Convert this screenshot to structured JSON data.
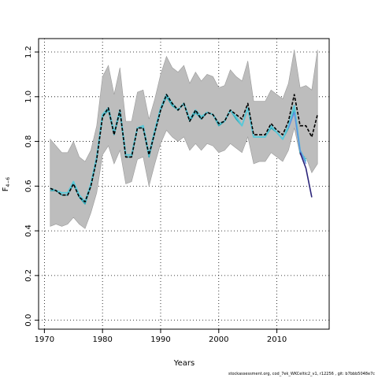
{
  "chart_data": {
    "type": "line",
    "xlabel": "Years",
    "ylabel": "F",
    "ylabel_sub": "4−6",
    "xlim": [
      1969,
      2019
    ],
    "ylim": [
      -0.04,
      1.26
    ],
    "x_ticks": [
      1970,
      1980,
      1990,
      2000,
      2010
    ],
    "y_ticks": [
      0.0,
      0.2,
      0.4,
      0.6,
      0.8,
      1.0,
      1.2
    ],
    "x_tick_labels": [
      "1970",
      "1980",
      "1990",
      "2000",
      "2010"
    ],
    "y_tick_labels": [
      "0.0",
      "0.2",
      "0.4",
      "0.6",
      "0.8",
      "1.0",
      "1.2"
    ],
    "grid": "dotted",
    "band": {
      "x": [
        1971,
        1972,
        1973,
        1974,
        1975,
        1976,
        1977,
        1978,
        1979,
        1980,
        1981,
        1982,
        1983,
        1984,
        1985,
        1986,
        1987,
        1988,
        1989,
        1990,
        1991,
        1992,
        1993,
        1994,
        1995,
        1996,
        1997,
        1998,
        1999,
        2000,
        2001,
        2002,
        2003,
        2004,
        2005,
        2006,
        2007,
        2008,
        2009,
        2010,
        2011,
        2012,
        2013,
        2014,
        2015,
        2016,
        2017
      ],
      "upper": [
        0.81,
        0.78,
        0.75,
        0.75,
        0.8,
        0.73,
        0.71,
        0.76,
        0.87,
        1.09,
        1.14,
        1.01,
        1.13,
        0.89,
        0.89,
        1.02,
        1.03,
        0.9,
        0.99,
        1.1,
        1.18,
        1.13,
        1.11,
        1.14,
        1.06,
        1.11,
        1.07,
        1.1,
        1.09,
        1.04,
        1.05,
        1.12,
        1.09,
        1.07,
        1.16,
        0.98,
        0.98,
        0.98,
        1.03,
        1.01,
        0.99,
        1.06,
        1.21,
        1.04,
        1.05,
        1.03,
        1.21
      ],
      "lower": [
        0.42,
        0.43,
        0.42,
        0.43,
        0.46,
        0.43,
        0.41,
        0.48,
        0.57,
        0.74,
        0.78,
        0.7,
        0.76,
        0.61,
        0.62,
        0.72,
        0.73,
        0.6,
        0.7,
        0.79,
        0.85,
        0.82,
        0.8,
        0.82,
        0.76,
        0.79,
        0.76,
        0.79,
        0.78,
        0.75,
        0.76,
        0.79,
        0.77,
        0.75,
        0.82,
        0.7,
        0.71,
        0.71,
        0.75,
        0.73,
        0.71,
        0.76,
        0.86,
        0.74,
        0.73,
        0.66,
        0.7
      ]
    },
    "series": [
      {
        "color": "#000000",
        "dashed": true,
        "width": 1.6,
        "x": [
          1971,
          1972,
          1973,
          1974,
          1975,
          1976,
          1977,
          1978,
          1979,
          1980,
          1981,
          1982,
          1983,
          1984,
          1985,
          1986,
          1987,
          1988,
          1989,
          1990,
          1991,
          1992,
          1993,
          1994,
          1995,
          1996,
          1997,
          1998,
          1999,
          2000,
          2001,
          2002,
          2003,
          2004,
          2005,
          2006,
          2007,
          2008,
          2009,
          2010,
          2011,
          2012,
          2013,
          2014,
          2015,
          2016,
          2017
        ],
        "values": [
          0.59,
          0.58,
          0.56,
          0.56,
          0.61,
          0.55,
          0.53,
          0.6,
          0.72,
          0.91,
          0.95,
          0.83,
          0.94,
          0.73,
          0.73,
          0.86,
          0.86,
          0.74,
          0.84,
          0.94,
          1.01,
          0.97,
          0.94,
          0.97,
          0.89,
          0.94,
          0.9,
          0.93,
          0.92,
          0.88,
          0.89,
          0.94,
          0.92,
          0.9,
          0.97,
          0.83,
          0.83,
          0.83,
          0.88,
          0.85,
          0.83,
          0.89,
          1.01,
          0.87,
          0.87,
          0.82,
          0.92
        ]
      },
      {
        "color": "#5bc8d8",
        "dashed": false,
        "width": 2,
        "x": [
          1971,
          1972,
          1973,
          1974,
          1975,
          1976,
          1977,
          1978,
          1979,
          1980,
          1981,
          1982,
          1983,
          1984,
          1985,
          1986,
          1987,
          1988,
          1989,
          1990,
          1991,
          1992,
          1993,
          1994,
          1995,
          1996,
          1997,
          1998,
          1999,
          2000,
          2001,
          2002,
          2003,
          2004,
          2005,
          2006,
          2007,
          2008,
          2009,
          2010,
          2011,
          2012,
          2013,
          2014,
          2015
        ],
        "values": [
          0.59,
          0.58,
          0.57,
          0.57,
          0.62,
          0.56,
          0.53,
          0.61,
          0.73,
          0.92,
          0.95,
          0.84,
          0.94,
          0.74,
          0.74,
          0.86,
          0.87,
          0.74,
          0.85,
          0.95,
          1.01,
          0.97,
          0.94,
          0.97,
          0.9,
          0.94,
          0.91,
          0.93,
          0.92,
          0.88,
          0.89,
          0.94,
          0.91,
          0.87,
          0.95,
          0.82,
          0.82,
          0.82,
          0.87,
          0.84,
          0.81,
          0.87,
          0.96,
          0.76,
          0.71
        ]
      },
      {
        "color": "#2ea7b5",
        "dashed": false,
        "width": 1.5,
        "x": [
          1971,
          1972,
          1973,
          1974,
          1975,
          1976,
          1977,
          1978,
          1979,
          1980,
          1981,
          1982,
          1983,
          1984,
          1985,
          1986,
          1987,
          1988,
          1989,
          1990,
          1991,
          1992,
          1993,
          1994,
          1995,
          1996,
          1997,
          1998,
          1999,
          2000,
          2001,
          2002,
          2003,
          2004,
          2005,
          2006,
          2007,
          2008,
          2009,
          2010,
          2011,
          2012,
          2013,
          2014,
          2015
        ],
        "values": [
          0.58,
          0.58,
          0.56,
          0.56,
          0.61,
          0.55,
          0.52,
          0.6,
          0.72,
          0.91,
          0.94,
          0.83,
          0.93,
          0.73,
          0.73,
          0.86,
          0.86,
          0.73,
          0.84,
          0.94,
          1.0,
          0.96,
          0.94,
          0.97,
          0.89,
          0.93,
          0.9,
          0.93,
          0.92,
          0.87,
          0.89,
          0.94,
          0.9,
          0.87,
          0.95,
          0.82,
          0.82,
          0.82,
          0.86,
          0.84,
          0.81,
          0.86,
          0.94,
          0.75,
          0.72
        ]
      },
      {
        "color": "#5f8fe0",
        "dashed": false,
        "width": 1.4,
        "x": [
          2012,
          2013,
          2014,
          2015
        ],
        "values": [
          0.86,
          0.93,
          0.76,
          0.7
        ]
      },
      {
        "color": "#2a2479",
        "dashed": false,
        "width": 1.6,
        "x": [
          2014,
          2015,
          2016
        ],
        "values": [
          0.75,
          0.68,
          0.55
        ]
      }
    ],
    "footer": "stockassessment.org,  cod_7ek_WKCeltic2_v1,  r12256  ,  git: b7bbb5048e7c"
  }
}
